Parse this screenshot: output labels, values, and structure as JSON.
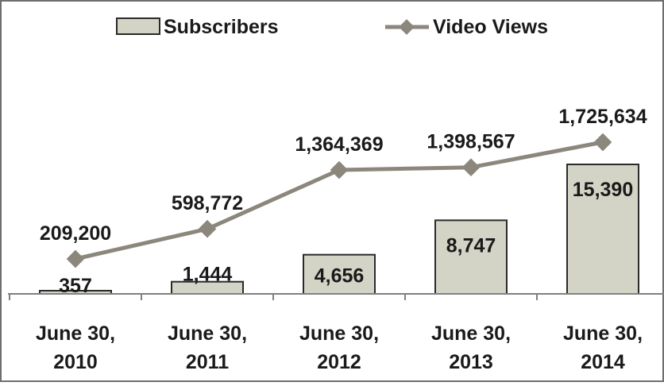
{
  "chart_data": {
    "type": "bar",
    "categories": [
      [
        "June 30,",
        "2010"
      ],
      [
        "June 30,",
        "2011"
      ],
      [
        "June 30,",
        "2012"
      ],
      [
        "June 30,",
        "2013"
      ],
      [
        "June 30,",
        "2014"
      ]
    ],
    "series": [
      {
        "name": "Subscribers",
        "type": "bar",
        "values": [
          357,
          1444,
          4656,
          8747,
          15390
        ],
        "labels": [
          "357",
          "1,444",
          "4,656",
          "8,747",
          "15,390"
        ],
        "color": "#d3d3c6",
        "border_color": "#2a2a2a",
        "ylim": [
          0,
          17500
        ]
      },
      {
        "name": "Video Views",
        "type": "line",
        "values": [
          209200,
          598772,
          1364369,
          1398567,
          1725634
        ],
        "labels": [
          "209,200",
          "598,772",
          "1,364,369",
          "1,398,567",
          "1,725,634"
        ],
        "color": "#8c877c",
        "marker": "diamond",
        "ylim": [
          -1000000,
          2550000
        ]
      }
    ],
    "legend": {
      "position": "top"
    },
    "grid": false
  }
}
